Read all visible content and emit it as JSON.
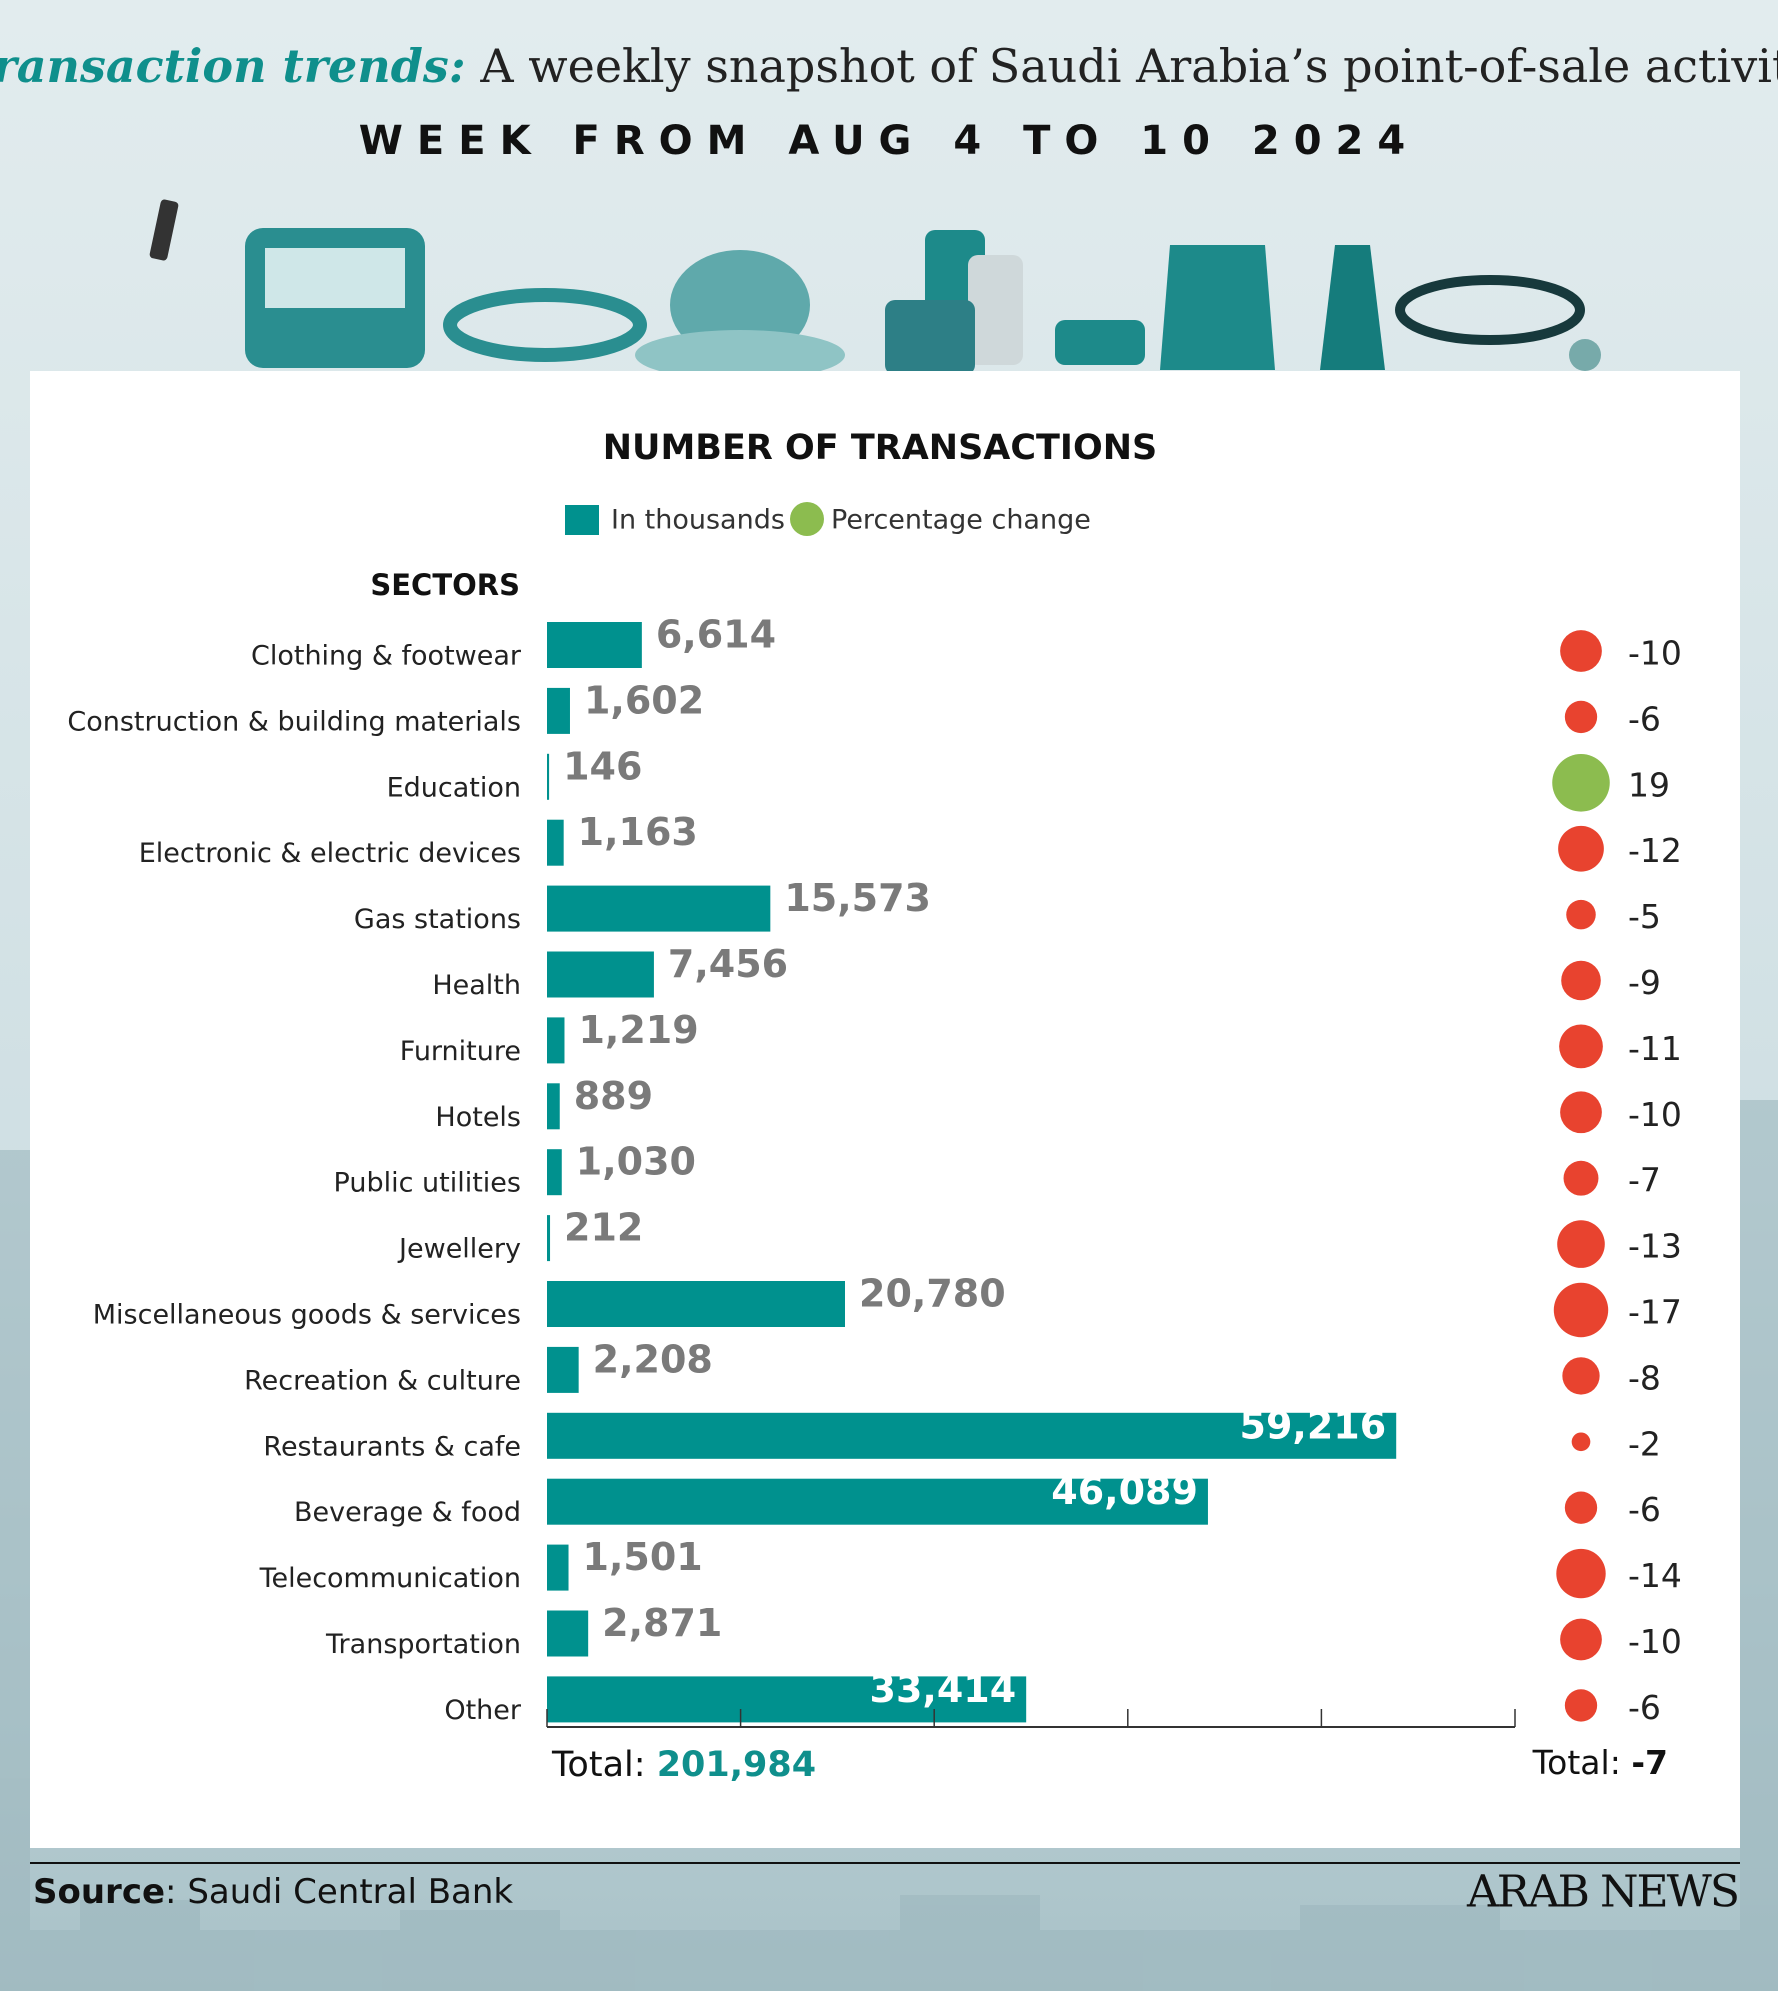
{
  "header": {
    "title_lead": "Transaction trends:",
    "title_rest": "A weekly snapshot of Saudi Arabia’s point-of-sale activity",
    "subtitle": "WEEK FROM AUG 4 TO 10 2024"
  },
  "chart_data": {
    "type": "bar",
    "orientation": "horizontal",
    "title": "NUMBER OF TRANSACTIONS",
    "category_label": "SECTORS",
    "categories": [
      "Clothing & footwear",
      "Construction & building materials",
      "Education",
      "Electronic & electric devices",
      "Gas stations",
      "Health",
      "Furniture",
      "Hotels",
      "Public utilities",
      "Jewellery",
      "Miscellaneous goods & services",
      "Recreation & culture",
      "Restaurants & cafe",
      "Beverage & food",
      "Telecommunication",
      "Transportation",
      "Other"
    ],
    "series": [
      {
        "name": "In thousands",
        "color": "#00918e",
        "values": [
          6614,
          1602,
          146,
          1163,
          15573,
          7456,
          1219,
          889,
          1030,
          212,
          20780,
          2208,
          59216,
          46089,
          1501,
          2871,
          33414
        ],
        "value_labels": [
          "6,614",
          "1,602",
          "146",
          "1,163",
          "15,573",
          "7,456",
          "1,219",
          "889",
          "1,030",
          "212",
          "20,780",
          "2,208",
          "59,216",
          "46,089",
          "1,501",
          "2,871",
          "33,414"
        ]
      },
      {
        "name": "Percentage change",
        "type": "bubble",
        "color": "#8cbc4f",
        "negative_color": "#e8432f",
        "values": [
          -10,
          -6,
          19,
          -12,
          -5,
          -9,
          -11,
          -10,
          -7,
          -13,
          -17,
          -8,
          -2,
          -6,
          -14,
          -10,
          -6
        ]
      }
    ],
    "xlim": [
      0,
      67500
    ],
    "totals": [
      {
        "label": "Total:",
        "value": 201984,
        "value_label": "201,984"
      },
      {
        "label": "Total:",
        "value": -7
      }
    ]
  },
  "footer": {
    "source_label": "Source",
    "source": "Saudi Central Bank",
    "brand": "ARAB NEWS"
  }
}
